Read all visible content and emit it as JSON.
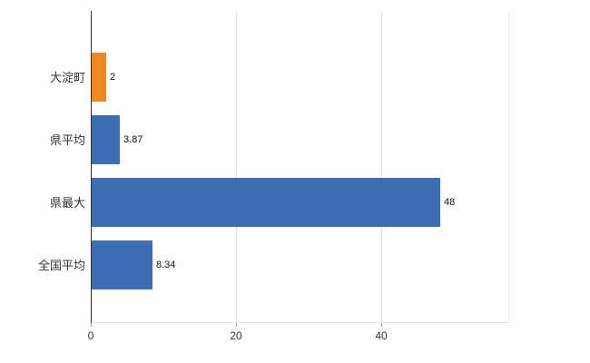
{
  "chart_data": {
    "type": "bar",
    "orientation": "horizontal",
    "title": "",
    "xlabel": "",
    "ylabel": "",
    "categories": [
      "大淀町",
      "県平均",
      "県最大",
      "全国平均"
    ],
    "values": [
      2,
      3.87,
      48,
      8.34
    ],
    "value_labels": [
      "2",
      "3.87",
      "48",
      "8.34"
    ],
    "bar_colors": [
      "#ee8822",
      "#3d6eb4",
      "#3d6eb4",
      "#3d6eb4"
    ],
    "xlim": [
      0,
      57.5
    ],
    "xticks": [
      0,
      20,
      40
    ],
    "grid": true,
    "legend": "none"
  },
  "colors": {
    "background": "#ffffff",
    "axis_line": "#2f2f2f",
    "grid_line": "#e4e4e4",
    "tick_mark": "#9a9a9a",
    "category_label": "#333333",
    "tick_label": "#333333",
    "value_label": "#111111"
  }
}
